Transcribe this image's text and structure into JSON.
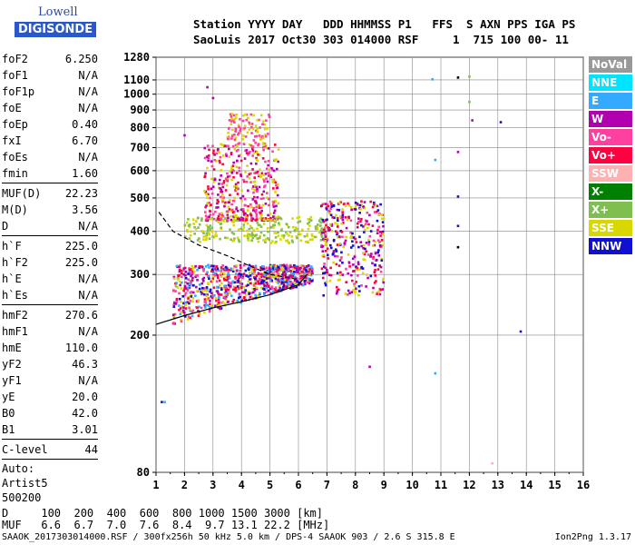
{
  "logo": {
    "line1": "Lowell",
    "line2": "DIGISONDE"
  },
  "header": {
    "row1": "Station YYYY DAY   DDD HHMMSS P1   FFS  S AXN PPS IGA PS",
    "row2": "SaoLuis 2017 Oct30 303 014000 RSF     1  715 100 00- 11"
  },
  "params": {
    "group1": [
      {
        "k": "foF2",
        "v": "6.250"
      },
      {
        "k": "foF1",
        "v": "N/A"
      },
      {
        "k": "foF1p",
        "v": "N/A"
      },
      {
        "k": "foE",
        "v": "N/A"
      },
      {
        "k": "foEp",
        "v": "0.40"
      },
      {
        "k": "fxI",
        "v": "6.70"
      },
      {
        "k": "foEs",
        "v": "N/A"
      },
      {
        "k": "fmin",
        "v": "1.60"
      }
    ],
    "group2": [
      {
        "k": "MUF(D)",
        "v": "22.23"
      },
      {
        "k": "M(D)",
        "v": "3.56"
      },
      {
        "k": "D",
        "v": "N/A"
      }
    ],
    "group3": [
      {
        "k": "h`F",
        "v": "225.0"
      },
      {
        "k": "h`F2",
        "v": "225.0"
      },
      {
        "k": "h`E",
        "v": "N/A"
      },
      {
        "k": "h`Es",
        "v": "N/A"
      }
    ],
    "group4": [
      {
        "k": "hmF2",
        "v": "270.6"
      },
      {
        "k": "hmF1",
        "v": "N/A"
      },
      {
        "k": "hmE",
        "v": "110.0"
      },
      {
        "k": "yF2",
        "v": "46.3"
      },
      {
        "k": "yF1",
        "v": "N/A"
      },
      {
        "k": "yE",
        "v": "20.0"
      },
      {
        "k": "B0",
        "v": "42.0"
      },
      {
        "k": "B1",
        "v": "3.01"
      }
    ],
    "clevel": {
      "k": "C-level",
      "v": "44"
    },
    "auto": [
      "Auto:",
      "Artist5",
      "500200"
    ]
  },
  "legend": [
    {
      "label": "NoVal",
      "color": "#999999"
    },
    {
      "label": "NNE",
      "color": "#00e5ff"
    },
    {
      "label": "E",
      "color": "#33aaff"
    },
    {
      "label": "W",
      "color": "#b000b0"
    },
    {
      "label": "Vo-",
      "color": "#ff40a0"
    },
    {
      "label": "Vo+",
      "color": "#ff0040"
    },
    {
      "label": "SSW",
      "color": "#ffb0b0"
    },
    {
      "label": "X-",
      "color": "#008000"
    },
    {
      "label": "X+",
      "color": "#7fbf50"
    },
    {
      "label": "SSE",
      "color": "#d8d800"
    },
    {
      "label": "NNW",
      "color": "#1010d0"
    }
  ],
  "chart_data": {
    "type": "scatter",
    "title": "",
    "xlabel": "",
    "ylabel": "",
    "xlim": [
      1,
      16
    ],
    "ylim": [
      80,
      1280
    ],
    "yscale": "log",
    "xticks": [
      1,
      2,
      3,
      4,
      5,
      6,
      7,
      8,
      9,
      10,
      11,
      12,
      13,
      14,
      15,
      16
    ],
    "yticks": [
      80,
      200,
      300,
      400,
      500,
      600,
      700,
      800,
      900,
      1000,
      1100,
      1280
    ],
    "grid": true,
    "regions": [
      {
        "name": "F-trace",
        "xrange": [
          1.6,
          6.5
        ],
        "yrange": [
          215,
          320
        ],
        "colors": [
          "#ff0040",
          "#ff40a0",
          "#b000b0",
          "#1010d0",
          "#33aaff",
          "#d8d800"
        ]
      },
      {
        "name": "F-echo-2",
        "xrange": [
          2,
          7
        ],
        "yrange": [
          370,
          440
        ],
        "colors": [
          "#d8d800",
          "#7fbf50"
        ]
      },
      {
        "name": "cluster-mid",
        "xrange": [
          2.7,
          5.3
        ],
        "yrange": [
          430,
          720
        ],
        "colors": [
          "#ff40a0",
          "#ff0040",
          "#b000b0",
          "#d8d800"
        ]
      },
      {
        "name": "cluster-high",
        "xrange": [
          3.5,
          5.0
        ],
        "yrange": [
          700,
          880
        ],
        "colors": [
          "#d8d800",
          "#ff40a0"
        ]
      },
      {
        "name": "cluster-right",
        "xrange": [
          6.8,
          9.0
        ],
        "yrange": [
          260,
          490
        ],
        "colors": [
          "#ff0040",
          "#b000b0",
          "#ff40a0",
          "#1010d0",
          "#d8d800"
        ]
      }
    ],
    "fit_lines": [
      {
        "name": "O-trace-fit",
        "x": [
          1.0,
          2.0,
          3.0,
          4.0,
          5.0,
          6.0,
          6.3
        ],
        "y": [
          215,
          228,
          240,
          250,
          262,
          280,
          300
        ]
      },
      {
        "name": "profile-dashed",
        "x": [
          1.1,
          1.6,
          2.5,
          3.5,
          4.2,
          5.0,
          6.0
        ],
        "y": [
          455,
          400,
          365,
          340,
          320,
          300,
          290
        ]
      }
    ],
    "isolated_points": [
      {
        "x": 10.7,
        "y": 1105,
        "color": "#33aaff"
      },
      {
        "x": 11.6,
        "y": 1118,
        "color": "#000000"
      },
      {
        "x": 12.0,
        "y": 1125,
        "color": "#7fbf50"
      },
      {
        "x": 12.0,
        "y": 950,
        "color": "#7fbf50"
      },
      {
        "x": 12.1,
        "y": 840,
        "color": "#b000b0"
      },
      {
        "x": 13.1,
        "y": 830,
        "color": "#1010d0"
      },
      {
        "x": 11.6,
        "y": 680,
        "color": "#b000b0"
      },
      {
        "x": 10.8,
        "y": 645,
        "color": "#33aaff"
      },
      {
        "x": 11.6,
        "y": 505,
        "color": "#1010d0"
      },
      {
        "x": 11.6,
        "y": 415,
        "color": "#1010d0"
      },
      {
        "x": 11.6,
        "y": 360,
        "color": "#000000"
      },
      {
        "x": 13.8,
        "y": 205,
        "color": "#1010d0"
      },
      {
        "x": 10.8,
        "y": 155,
        "color": "#33aaff"
      },
      {
        "x": 8.5,
        "y": 162,
        "color": "#b000b0"
      },
      {
        "x": 1.2,
        "y": 128,
        "color": "#1010d0"
      },
      {
        "x": 1.3,
        "y": 128,
        "color": "#33aaff"
      },
      {
        "x": 2.8,
        "y": 1048,
        "color": "#b000b0"
      },
      {
        "x": 2.0,
        "y": 760,
        "color": "#b000b0"
      },
      {
        "x": 3.0,
        "y": 975,
        "color": "#b000b0"
      },
      {
        "x": 12.8,
        "y": 85,
        "color": "#ffb0b0"
      }
    ]
  },
  "footer": {
    "line1": "D     100  200  400  600  800 1000 1500 3000 [km]",
    "line2": "MUF   6.6  6.7  7.0  7.6  8.4  9.7 13.1 22.2 [MHz]",
    "line3": "SAAOK_2017303014000.RSF / 300fx256h 50 kHz 5.0 km / DPS-4 SAAOK 903 / 2.6 S 315.8 E",
    "version": "Ion2Png 1.3.17"
  }
}
